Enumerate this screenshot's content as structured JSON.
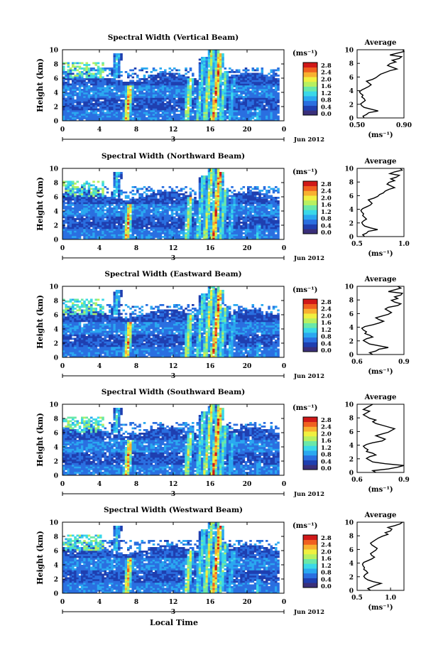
{
  "chart_data": {
    "type": "heatmap",
    "panels": [
      {
        "title": "Spectral Width (Vertical Beam)",
        "avg_title": "Average",
        "avg_ticks": [
          "0.50",
          "0.90"
        ],
        "avg_xlim": [
          0.5,
          0.9
        ],
        "avg_profile": [
          0.56,
          0.55,
          0.58,
          0.6,
          0.68,
          0.62,
          0.56,
          0.54,
          0.53,
          0.55,
          0.57,
          0.56,
          0.54,
          0.55,
          0.53,
          0.52,
          0.54,
          0.57,
          0.6,
          0.62,
          0.6,
          0.58,
          0.63,
          0.66,
          0.68,
          0.7,
          0.74,
          0.78,
          0.84,
          0.8,
          0.76,
          0.78,
          0.83,
          0.8,
          0.86,
          0.88,
          0.78,
          0.84,
          0.9,
          0.89
        ]
      },
      {
        "title": "Spectral Width (Northward Beam)",
        "avg_title": "Average",
        "avg_ticks": [
          "0.5",
          "1.0"
        ],
        "avg_xlim": [
          0.5,
          1.0
        ],
        "avg_profile": [
          0.58,
          0.56,
          0.6,
          0.62,
          0.72,
          0.64,
          0.58,
          0.56,
          0.55,
          0.57,
          0.6,
          0.58,
          0.56,
          0.57,
          0.55,
          0.54,
          0.56,
          0.6,
          0.64,
          0.66,
          0.64,
          0.62,
          0.68,
          0.72,
          0.74,
          0.78,
          0.8,
          0.84,
          0.9,
          0.86,
          0.82,
          0.84,
          0.9,
          0.86,
          0.92,
          0.95,
          0.85,
          0.9,
          0.98,
          0.96
        ]
      },
      {
        "title": "Spectral Width (Eastward Beam)",
        "avg_title": "Average",
        "avg_ticks": [
          "0.6",
          "0.9"
        ],
        "avg_xlim": [
          0.6,
          0.9
        ],
        "avg_profile": [
          0.7,
          0.68,
          0.72,
          0.74,
          0.8,
          0.74,
          0.68,
          0.66,
          0.64,
          0.66,
          0.7,
          0.68,
          0.65,
          0.66,
          0.64,
          0.63,
          0.65,
          0.7,
          0.74,
          0.77,
          0.74,
          0.72,
          0.76,
          0.8,
          0.82,
          0.8,
          0.78,
          0.8,
          0.86,
          0.88,
          0.84,
          0.82,
          0.86,
          0.84,
          0.88,
          0.89,
          0.8,
          0.84,
          0.88,
          0.86
        ]
      },
      {
        "title": "Spectral Width (Southward Beam)",
        "avg_title": "Average",
        "avg_ticks": [
          "0.6",
          "0.9"
        ],
        "avg_xlim": [
          0.6,
          0.9
        ],
        "avg_profile": [
          0.72,
          0.7,
          0.8,
          0.86,
          0.9,
          0.78,
          0.7,
          0.68,
          0.66,
          0.68,
          0.72,
          0.7,
          0.66,
          0.67,
          0.65,
          0.64,
          0.66,
          0.7,
          0.76,
          0.78,
          0.75,
          0.72,
          0.76,
          0.8,
          0.82,
          0.84,
          0.8,
          0.76,
          0.72,
          0.7,
          0.72,
          0.68,
          0.66,
          0.64,
          0.66,
          0.68,
          0.64,
          0.66,
          0.68,
          0.7
        ]
      },
      {
        "title": "Spectral Width (Westward Beam)",
        "avg_title": "Average",
        "avg_ticks": [
          "0.5",
          "1.0"
        ],
        "avg_xlim": [
          0.5,
          1.2
        ],
        "avg_profile": [
          0.7,
          0.66,
          0.72,
          0.78,
          0.86,
          0.74,
          0.66,
          0.62,
          0.6,
          0.62,
          0.66,
          0.64,
          0.6,
          0.61,
          0.59,
          0.58,
          0.6,
          0.66,
          0.72,
          0.76,
          0.72,
          0.7,
          0.74,
          0.78,
          0.8,
          0.76,
          0.72,
          0.7,
          0.74,
          0.78,
          0.82,
          0.88,
          0.96,
          0.92,
          1.0,
          1.02,
          0.96,
          1.06,
          1.14,
          1.18
        ]
      }
    ],
    "ylabel": "Height (km)",
    "ylim": [
      0,
      10
    ],
    "yticks": [
      "0",
      "2",
      "4",
      "6",
      "8",
      "10"
    ],
    "xticks": [
      "0",
      "4",
      "8",
      "12",
      "16",
      "20",
      "0"
    ],
    "xlim": [
      0,
      24
    ],
    "date_marker": "3",
    "date_label": "Jun 2012",
    "xlabel": "Local Time",
    "avg_unit_label": "(ms⁻¹)",
    "colorbar": {
      "unit_label": "(ms⁻¹)",
      "ticks": [
        "0.0",
        "0.4",
        "0.8",
        "1.2",
        "1.6",
        "2.0",
        "2.4",
        "2.8"
      ],
      "range": [
        0,
        3.0
      ],
      "colors": [
        "#3a2f7a",
        "#1f3fb0",
        "#2a6fe0",
        "#2aa8f0",
        "#3ad8e8",
        "#6ae8a8",
        "#b8f060",
        "#f0f040",
        "#f8b030",
        "#f06020",
        "#d01818"
      ]
    }
  }
}
